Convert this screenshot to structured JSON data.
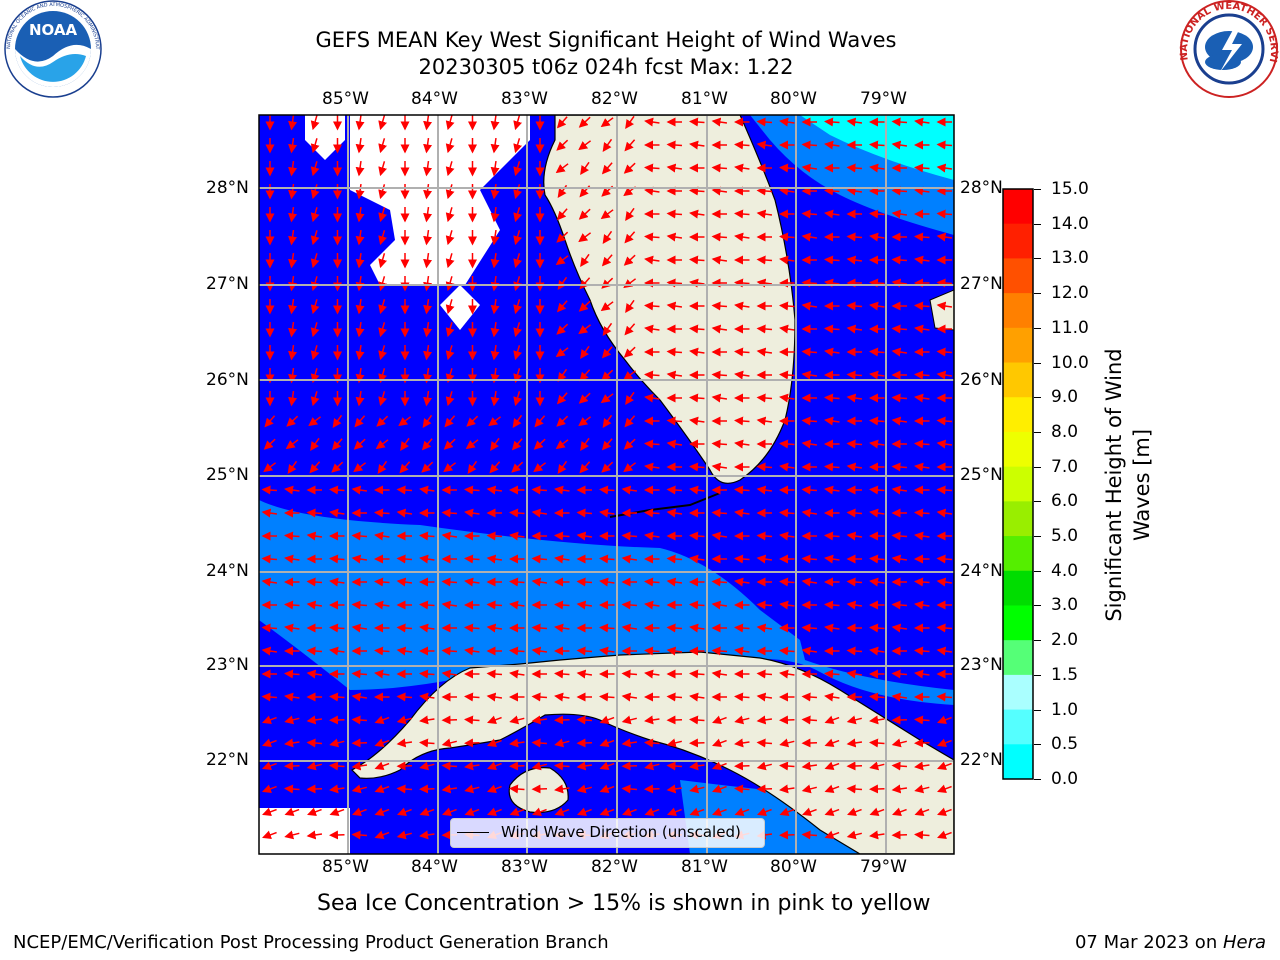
{
  "title": {
    "line1": "GEFS MEAN Key West Significant Height of Wind Waves",
    "line2": "20230305 t06z 024h fcst   Max: 1.22"
  },
  "map": {
    "lon_labels": [
      "85°W",
      "84°W",
      "83°W",
      "82°W",
      "81°W",
      "80°W",
      "79°W"
    ],
    "lat_labels": [
      "28°N",
      "27°N",
      "26°N",
      "25°N",
      "24°N",
      "23°N",
      "22°N"
    ],
    "legend_label": "Wind Wave Direction (unscaled)",
    "colors": {
      "wave_0_0.5": "#0000ff",
      "wave_0.5_1.0": "#0080ff",
      "land": "#eeeedd",
      "arrow": "#ff0000",
      "grid": "#b0b0b0"
    }
  },
  "colorbar": {
    "title_line1": "Significant Height of Wind",
    "title_line2": "Waves [m]",
    "ticks": [
      "15.0",
      "14.0",
      "13.0",
      "12.0",
      "11.0",
      "10.0",
      "9.0",
      "8.0",
      "7.0",
      "6.0",
      "5.0",
      "4.0",
      "3.0",
      "2.0",
      "1.5",
      "1.0",
      "0.5",
      "0.0"
    ],
    "colors": [
      "#ff0000",
      "#ff2000",
      "#ff5000",
      "#ff8000",
      "#ffa000",
      "#ffc800",
      "#ffee00",
      "#eeff00",
      "#ccff00",
      "#99ee00",
      "#55ee00",
      "#00dd00",
      "#00ff00",
      "#55ff77",
      "#aaffff",
      "#55ffff",
      "#00ffff",
      "#0080ff",
      "#0000ff"
    ]
  },
  "subtitle": "Sea Ice Concentration > 15% is shown in pink to yellow",
  "footer": {
    "left": "NCEP/EMC/Verification Post Processing Product Generation Branch",
    "right_date": "07 Mar 2023 on ",
    "right_host": "Hera"
  },
  "logos": {
    "noaa": "NOAA",
    "nws": "NATIONAL WEATHER SERVICE"
  }
}
